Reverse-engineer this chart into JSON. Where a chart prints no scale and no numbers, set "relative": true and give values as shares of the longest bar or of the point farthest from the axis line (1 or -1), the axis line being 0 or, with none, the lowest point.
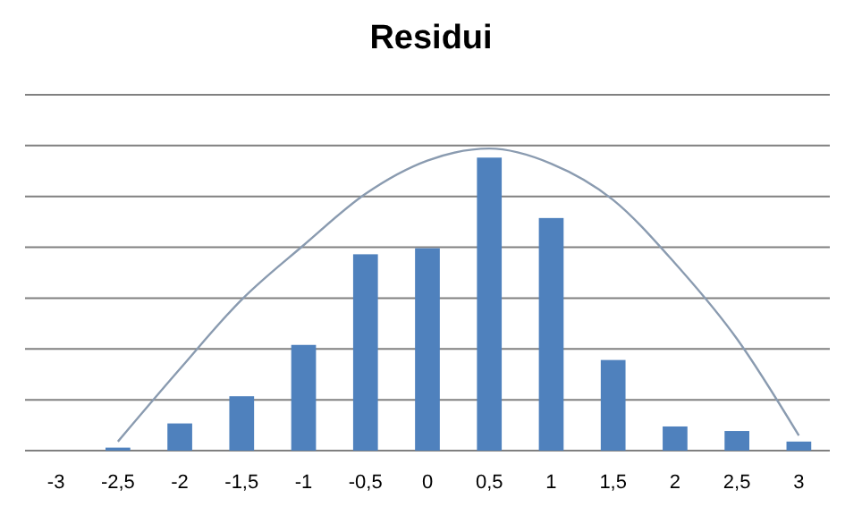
{
  "chart_data": {
    "type": "bar",
    "title": "Residui",
    "relative": true,
    "grid": "y",
    "categories": [
      "-3",
      "-2,5",
      "-2",
      "-1,5",
      "-1",
      "-0,5",
      "0",
      "0,5",
      "1",
      "1,5",
      "2",
      "2,5",
      "3"
    ],
    "series": [
      {
        "color": "#4f81bd",
        "values": [
          0,
          0.01,
          0.09,
          0.18,
          0.35,
          0.65,
          0.67,
          0.97,
          0.77,
          0.3,
          0.08,
          0.065,
          0.03
        ]
      },
      {
        "type": "line",
        "color": "#8a9bb0",
        "values": [
          null,
          0.03,
          0.27,
          0.5,
          0.68,
          0.85,
          0.96,
          1,
          0.95,
          0.83,
          0.62,
          0.37,
          0.05
        ]
      }
    ]
  }
}
